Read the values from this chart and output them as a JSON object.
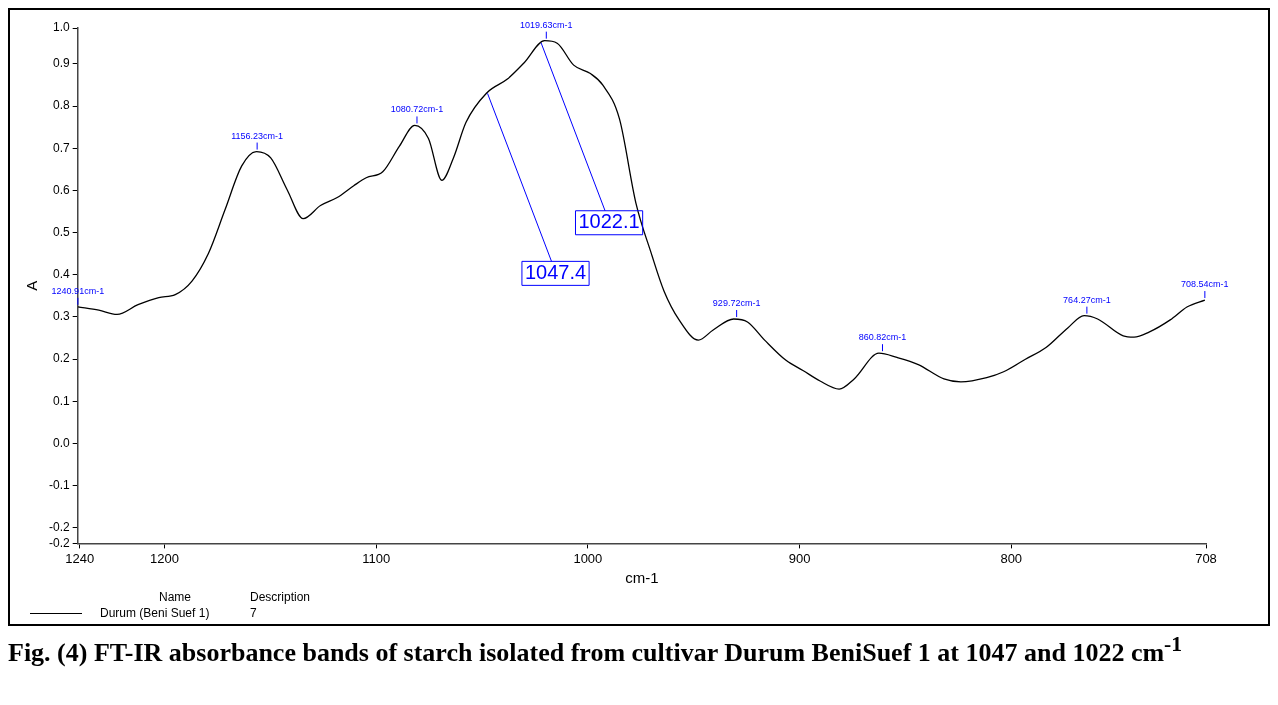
{
  "chart_data": {
    "type": "line",
    "title": "Fig. (4) FT-IR absorbance bands of starch isolated from cultivar Durum BeniSuef 1 at 1047 and 1022 cm$^{-1}$",
    "xlabel": "cm-1",
    "ylabel": "A",
    "xlim": [
      1241,
      708
    ],
    "xticks": [
      1240,
      1200,
      1100,
      1000,
      900,
      800,
      708
    ],
    "ylim": [
      -0.237,
      0.985
    ],
    "yticks": [
      {
        "value": -0.237,
        "label": "-0.2"
      },
      -0.2,
      -0.1,
      {
        "value": 0,
        "label": "0.0"
      },
      0.1,
      0.2,
      0.3,
      0.4,
      0.5,
      0.6,
      0.7,
      0.8,
      0.9,
      {
        "value": 0.985,
        "label": "1.0"
      }
    ],
    "grid": false,
    "legend": "bottom left",
    "marker": "none",
    "line_style": "solid",
    "series": [
      {
        "name": "Durum (Beni Suef 1)",
        "color": "#000000",
        "x": [
          1240.91,
          1231,
          1222.4,
          1212.5,
          1202.7,
          1194.9,
          1187,
          1179.2,
          1171.4,
          1163.5,
          1156.5,
          1149.8,
          1142,
          1134.5,
          1126.3,
          1118.4,
          1110.6,
          1104.7,
          1096.9,
          1089,
          1081.8,
          1075.3,
          1069,
          1063.5,
          1057.6,
          1047.8,
          1038,
          1030.2,
          1020.4,
          1014.5,
          1006.7,
          998.8,
          993,
          985.1,
          977.3,
          970,
          964,
          956.9,
          947.8,
          940.8,
          931.1,
          924.6,
          916.5,
          906.4,
          898.4,
          890.3,
          881.3,
          874.2,
          862.5,
          854,
          843.9,
          831.8,
          823.8,
          811.6,
          803.6,
          793.5,
          783.4,
          773.3,
          765.6,
          759.2,
          747.1,
          742,
          734.9,
          724.9,
          716.8,
          708.54
        ],
        "values": [
          0.324,
          0.316,
          0.306,
          0.329,
          0.346,
          0.353,
          0.385,
          0.451,
          0.554,
          0.658,
          0.692,
          0.677,
          0.601,
          0.533,
          0.564,
          0.583,
          0.611,
          0.63,
          0.644,
          0.705,
          0.754,
          0.723,
          0.624,
          0.677,
          0.761,
          0.831,
          0.864,
          0.902,
          0.955,
          0.949,
          0.897,
          0.877,
          0.85,
          0.77,
          0.57,
          0.45,
          0.361,
          0.293,
          0.245,
          0.269,
          0.295,
          0.288,
          0.245,
          0.197,
          0.173,
          0.148,
          0.129,
          0.153,
          0.214,
          0.204,
          0.187,
          0.153,
          0.146,
          0.156,
          0.17,
          0.199,
          0.228,
          0.274,
          0.303,
          0.295,
          0.255,
          0.252,
          0.264,
          0.293,
          0.324,
          0.34
        ]
      }
    ],
    "annotations": [
      {
        "text": "1240.91cm-1",
        "x": 1240.91,
        "y": 0.324
      },
      {
        "text": "1156.23cm-1",
        "x": 1156.23,
        "y": 0.692
      },
      {
        "text": "1080.72cm-1",
        "x": 1080.72,
        "y": 0.754
      },
      {
        "text": "1019.63cm-1",
        "x": 1019.63,
        "y": 0.955
      },
      {
        "text": "929.72cm-1",
        "x": 929.72,
        "y": 0.295
      },
      {
        "text": "860.82cm-1",
        "x": 860.82,
        "y": 0.214
      },
      {
        "text": "764.27cm-1",
        "x": 764.27,
        "y": 0.303
      },
      {
        "text": "708.54cm-1",
        "x": 708.54,
        "y": 0.34
      },
      {
        "text": "1022.1",
        "x": 1022.1,
        "y": 0.95
      },
      {
        "text": "1047.4",
        "x": 1047.4,
        "y": 0.83
      },
      "Name",
      "Description",
      "7"
    ]
  }
}
